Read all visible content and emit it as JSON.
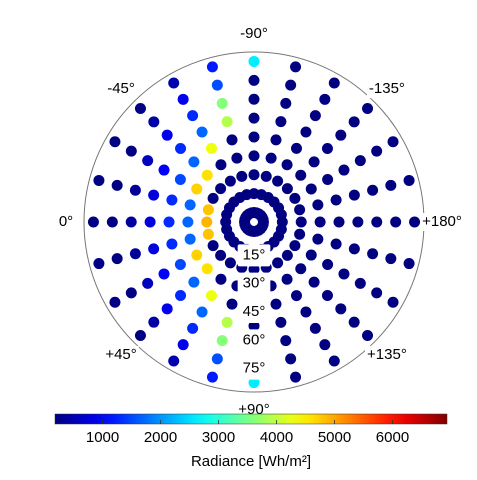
{
  "chart_data": {
    "type": "polar-scatter",
    "colormap": "jet",
    "azimuth": [
      -165,
      -150,
      -135,
      -120,
      -105,
      -90,
      -75,
      -60,
      -45,
      -30,
      -15,
      0,
      15,
      30,
      45,
      60,
      75,
      90,
      105,
      120,
      135,
      150,
      165,
      180
    ],
    "zenith": [
      5,
      15,
      25,
      35,
      45,
      55,
      65,
      75,
      85
    ],
    "values": [
      [
        150,
        150,
        150,
        150,
        150,
        150,
        150,
        150,
        150,
        150,
        150,
        150,
        150,
        150,
        150,
        150,
        150,
        150,
        150,
        150,
        150,
        150,
        150,
        150
      ],
      [
        150,
        150,
        150,
        150,
        150,
        150,
        150,
        150,
        150,
        150,
        150,
        150,
        150,
        150,
        150,
        150,
        150,
        150,
        150,
        150,
        150,
        150,
        150,
        150
      ],
      [
        150,
        150,
        150,
        150,
        150,
        150,
        150,
        150,
        150,
        150,
        4800,
        4900,
        4800,
        150,
        150,
        150,
        150,
        150,
        150,
        150,
        150,
        150,
        150,
        150
      ],
      [
        150,
        150,
        150,
        150,
        150,
        150,
        150,
        150,
        4600,
        4700,
        1700,
        1700,
        1700,
        4700,
        4600,
        150,
        150,
        150,
        150,
        150,
        150,
        150,
        150,
        150
      ],
      [
        150,
        150,
        150,
        150,
        150,
        150,
        150,
        4300,
        1700,
        1500,
        1300,
        1300,
        1300,
        1500,
        1700,
        4300,
        150,
        150,
        150,
        150,
        150,
        150,
        150,
        150
      ],
      [
        150,
        150,
        150,
        150,
        150,
        150,
        3900,
        1700,
        1300,
        1000,
        800,
        800,
        800,
        1000,
        1300,
        1700,
        3900,
        150,
        150,
        150,
        150,
        150,
        150,
        150
      ],
      [
        150,
        150,
        150,
        150,
        150,
        150,
        3600,
        1300,
        900,
        600,
        350,
        400,
        350,
        600,
        900,
        1300,
        3600,
        150,
        150,
        150,
        150,
        150,
        150,
        150
      ],
      [
        150,
        150,
        150,
        150,
        150,
        150,
        1550,
        900,
        450,
        200,
        200,
        200,
        200,
        200,
        450,
        900,
        1550,
        150,
        150,
        150,
        150,
        150,
        150,
        150
      ],
      [
        150,
        150,
        150,
        150,
        150,
        2600,
        1200,
        500,
        200,
        200,
        200,
        200,
        200,
        200,
        200,
        500,
        1200,
        2600,
        150,
        150,
        150,
        150,
        150,
        150
      ]
    ],
    "rlim": [
      0,
      90
    ],
    "azimuth_labels": [
      {
        "value": -90,
        "label": "-90°"
      },
      {
        "value": -45,
        "label": "-45°"
      },
      {
        "value": -135,
        "label": "-135°"
      },
      {
        "value": 0,
        "label": "0°"
      },
      {
        "value": 180,
        "label": "+180°"
      },
      {
        "value": 45,
        "label": "+45°"
      },
      {
        "value": 135,
        "label": "+135°"
      },
      {
        "value": 90,
        "label": "+90°"
      }
    ],
    "zenith_labels": [
      {
        "value": 15,
        "label": "15°"
      },
      {
        "value": 30,
        "label": "30°"
      },
      {
        "value": 45,
        "label": "45°"
      },
      {
        "value": 60,
        "label": "60°"
      },
      {
        "value": 75,
        "label": "75°"
      }
    ],
    "clim": [
      180,
      6940
    ],
    "cticks": [
      1000,
      2000,
      3000,
      4000,
      5000,
      6000
    ],
    "colorbar_label": "Radiance [Wh/m²]"
  }
}
